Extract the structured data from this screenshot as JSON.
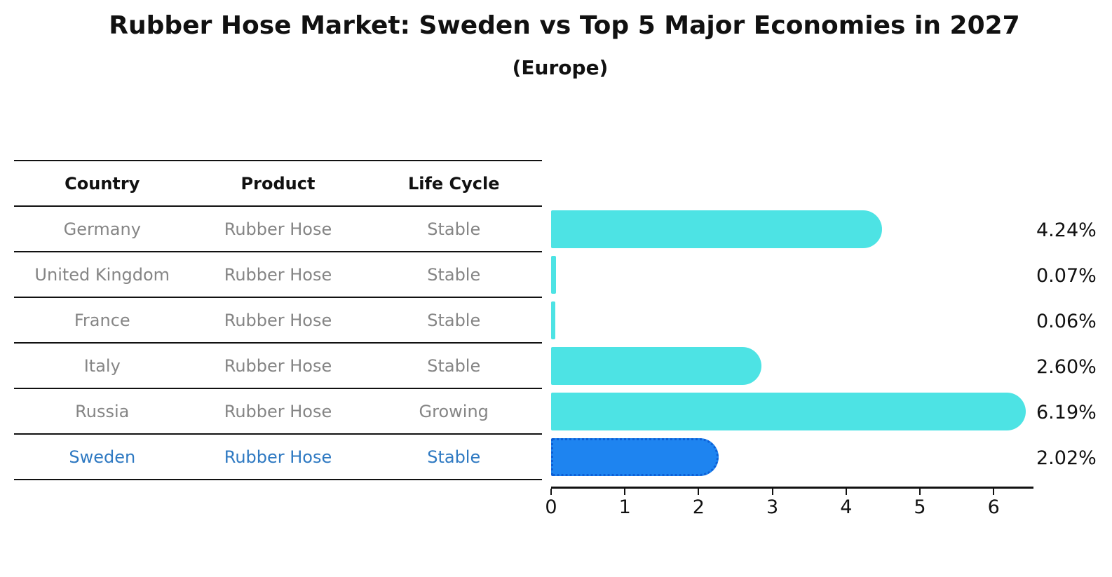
{
  "title": "Rubber Hose Market: Sweden vs Top 5 Major Economies in 2027",
  "subtitle": "(Europe)",
  "table": {
    "headers": [
      "Country",
      "Product",
      "Life Cycle"
    ],
    "rows": [
      {
        "country": "Germany",
        "product": "Rubber Hose",
        "life_cycle": "Stable",
        "highlight": false
      },
      {
        "country": "United Kingdom",
        "product": "Rubber Hose",
        "life_cycle": "Stable",
        "highlight": false
      },
      {
        "country": "France",
        "product": "Rubber Hose",
        "life_cycle": "Stable",
        "highlight": false
      },
      {
        "country": "Italy",
        "product": "Rubber Hose",
        "life_cycle": "Stable",
        "highlight": false
      },
      {
        "country": "Russia",
        "product": "Rubber Hose",
        "life_cycle": "Growing",
        "highlight": false
      },
      {
        "country": "Sweden",
        "product": "Rubber Hose",
        "life_cycle": "Stable",
        "highlight": true
      }
    ]
  },
  "chart_data": {
    "type": "bar",
    "orientation": "horizontal",
    "title": "Rubber Hose Market: Sweden vs Top 5 Major Economies in 2027",
    "subtitle": "(Europe)",
    "categories": [
      "Germany",
      "United Kingdom",
      "France",
      "Italy",
      "Russia",
      "Sweden"
    ],
    "values": [
      4.24,
      0.07,
      0.06,
      2.6,
      6.19,
      2.02
    ],
    "value_labels": [
      "4.24%",
      "0.07%",
      "0.06%",
      "2.60%",
      "6.19%",
      "2.02%"
    ],
    "xlim": [
      0,
      6.5
    ],
    "xticks": [
      "0",
      "1",
      "2",
      "3",
      "4",
      "5",
      "6"
    ],
    "grid": false,
    "legend": false,
    "bar_color": "#4de3e4",
    "highlight_bar_color": "#1e84f0",
    "highlight_border_color": "#0d5fd6",
    "highlight_index": 5,
    "highlight_category": "Sweden",
    "highlight_text_color": "#2e79c2",
    "row_text_color": "#858585"
  }
}
